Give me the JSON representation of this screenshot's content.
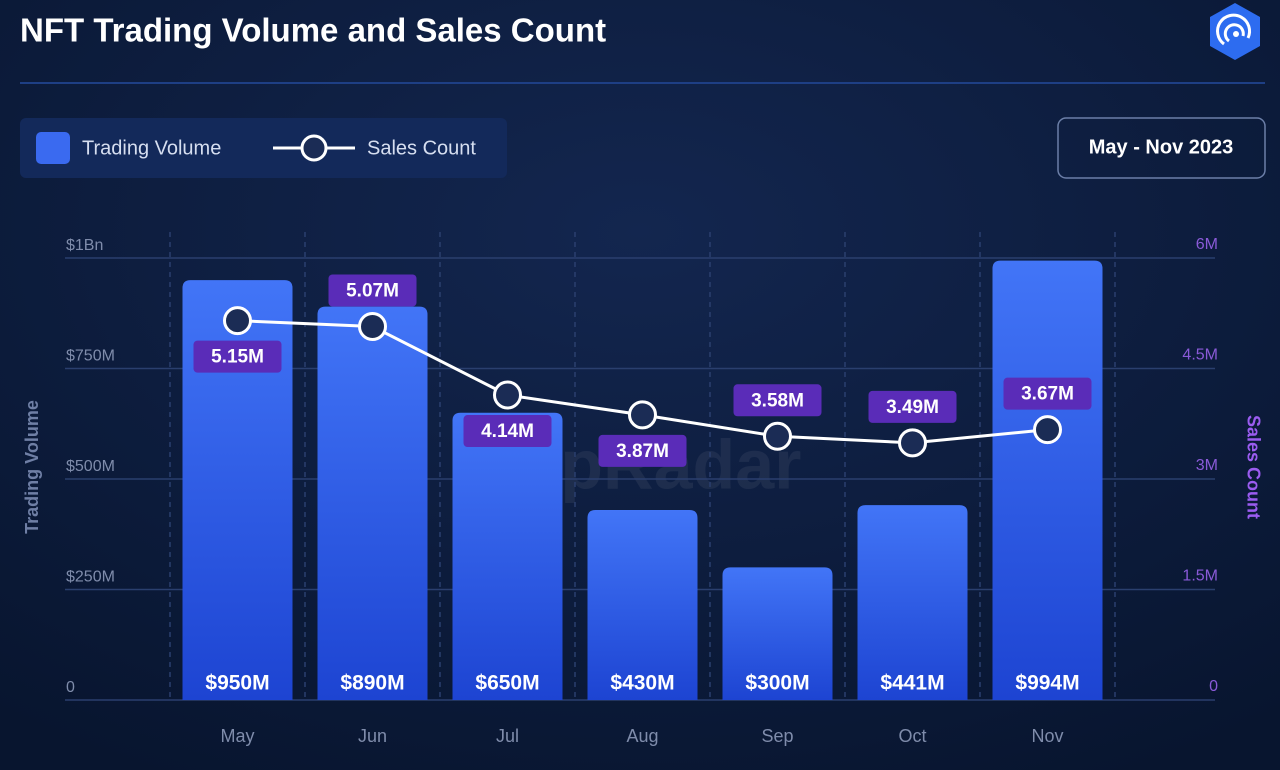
{
  "chart_data": {
    "type": "bar",
    "title": "NFT Trading Volume and Sales Count",
    "date_range": "May - Nov 2023",
    "watermark": "appRadar",
    "ylabel": "Trading Volume",
    "y2label": "Sales Count",
    "categories": [
      "May",
      "Jun",
      "Jul",
      "Aug",
      "Sep",
      "Oct",
      "Nov"
    ],
    "series": [
      {
        "name": "Trading Volume",
        "type": "bar",
        "color": "#3a6af0",
        "values": [
          950000000,
          890000000,
          650000000,
          430000000,
          300000000,
          441000000,
          994000000
        ],
        "value_labels": [
          "$950M",
          "$890M",
          "$650M",
          "$430M",
          "$300M",
          "$441M",
          "$994M"
        ]
      },
      {
        "name": "Sales Count",
        "type": "line",
        "axis": "y2",
        "color": "#ffffff",
        "values": [
          5150000,
          5070000,
          4140000,
          3870000,
          3580000,
          3490000,
          3670000
        ],
        "value_labels": [
          "5.15M",
          "5.07M",
          "4.14M",
          "3.87M",
          "3.58M",
          "3.49M",
          "3.67M"
        ]
      }
    ],
    "ylim": [
      0,
      1000000000
    ],
    "yticks": [
      0,
      {
        "value": 250000000,
        "label": "$250M"
      },
      {
        "value": 500000000,
        "label": "$500M"
      },
      {
        "value": 750000000,
        "label": "$750M"
      },
      {
        "value": 1000000000,
        "label": "$1Bn"
      }
    ],
    "y2lim": [
      0,
      6000000
    ],
    "y2ticks": [
      0,
      {
        "value": 1500000,
        "label": "1.5M"
      },
      {
        "value": 3000000,
        "label": "3M"
      },
      {
        "value": 4500000,
        "label": "4.5M"
      },
      {
        "value": 6000000,
        "label": "6M"
      }
    ],
    "grid": true
  }
}
